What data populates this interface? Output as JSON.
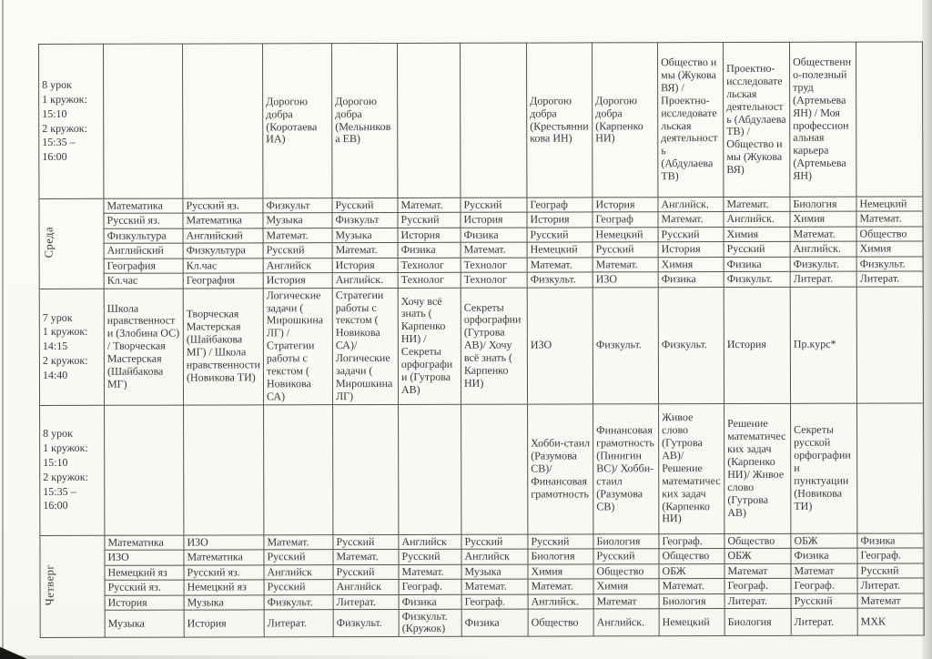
{
  "colors": {
    "paper": "#fbfaf7",
    "ink": "#3a3a3e",
    "line": "#57534d",
    "scan_shadow": "#c8c6c2"
  },
  "timetable": {
    "sections": [
      {
        "kind": "club",
        "time_lines": [
          "8 урок",
          "1 кружок:",
          "15:10",
          "2 кружок:",
          "15:35 –",
          "16:00"
        ],
        "cells": [
          "",
          "",
          "Дорогою добра (Коротаева ИА)",
          "Дорогою добра (Мельникова ЕВ)",
          "",
          "",
          "Дорогою добра (Крестьянникова ИН)",
          "Дорогою добра (Карпенко НИ)",
          "Общество и мы (Жукова ВЯ) / Проектно-исследовательская деятельность (Абдулаева ТВ)",
          "Проектно-исследовательская деятельность (Абдулаева ТВ) / Общество и мы (Жукова ВЯ)",
          "Общественно-полезный труд (Артемьева ЯН) / Моя профессиональная карьера (Артемьева ЯН)",
          ""
        ]
      },
      {
        "kind": "day",
        "label": "Среда",
        "rows": [
          [
            "Математика",
            "Русский яз.",
            "Физкульт",
            "Русский",
            "Математ.",
            "Русский",
            "Географ",
            "История",
            "Английск.",
            "Математ.",
            "Биология",
            "Немецкий"
          ],
          [
            "Русский яз.",
            "Математика",
            "Музыка",
            "Физкульт",
            "Русский",
            "История",
            "История",
            "Географ",
            "Математ.",
            "Английск.",
            "Химия",
            "Математ."
          ],
          [
            "Физкультура",
            "Английский",
            "Математ.",
            "Музыка",
            "История",
            "Физика",
            "Русский",
            "Немецкий",
            "Русский",
            "Химия",
            "Математ.",
            "Общество"
          ],
          [
            "Английский",
            "Физкультура",
            "Русский",
            "Математ.",
            "Физика",
            "Математ.",
            "Немецкий",
            "Русский",
            "История",
            "Русский",
            "Английск.",
            "Химия"
          ],
          [
            "География",
            "Кл.час",
            "Английск",
            "История",
            "Технолог",
            "Технолог",
            "Математ.",
            "Математ.",
            "Химия",
            "Физика",
            "Физкульт.",
            "Физкульт."
          ],
          [
            "Кл.час",
            "География",
            "История",
            "Английск.",
            "Технолог",
            "Технолог",
            "Физкульт.",
            "ИЗО",
            "Физика",
            "Физкульт.",
            "Литерат.",
            "Литерат."
          ]
        ]
      },
      {
        "kind": "club",
        "time_lines": [
          "7 урок",
          "1 кружок:",
          "14:15",
          "2 кружок:",
          "14:40"
        ],
        "cells": [
          "Школа нравственности (Злобина ОС) / Творческая Мастерская (Шайбакова МГ)",
          "Творческая Мастерская (Шайбакова МГ) / Школа нравственности (Новикова ТИ)",
          "Логические задачи ( Мирошкина ЛГ) / Стратегии работы с текстом ( Новикова СА)",
          "Стратегии работы с текстом ( Новикова СА)/ Логические задачи ( Мирошкина ЛГ)",
          "Хочу всё знать ( Карпенко НИ) / Секреты орфографии (Гутрова АВ)",
          "Секреты орфографии (Гутрова АВ)/ Хочу всё знать ( Карпенко НИ)",
          "ИЗО",
          "Физкульт.",
          "Физкульт.",
          "История",
          "Пр.курс*",
          ""
        ]
      },
      {
        "kind": "club",
        "time_lines": [
          "8 урок",
          "1 кружок:",
          "15:10",
          "2 кружок:",
          "15:35 –",
          "16:00"
        ],
        "cells": [
          "",
          "",
          "",
          "",
          "",
          "",
          "Хобби-стаил (Разумова СВ)/ Финансовая грамотность",
          "Финансовая грамотность (Пинигин ВС)/ Хобби-стаил (Разумова СВ)",
          "Живое слово (Гутрова АВ)/Решение математических задач (Карпенко НИ)",
          "Решение математических задач (Карпенко НИ)/ Живое слово (Гутрова АВ)",
          "Секреты русской орфографии и пунктуации (Новикова ТИ)",
          ""
        ]
      },
      {
        "kind": "day",
        "label": "Четверг",
        "rows": [
          [
            "Математика",
            "ИЗО",
            "Математ.",
            "Русский",
            "Английск",
            "Русский",
            "Русский",
            "Биология",
            "Географ.",
            "Общество",
            "ОБЖ",
            "Физика"
          ],
          [
            "ИЗО",
            "Математика",
            "Русский",
            "Математ.",
            "Русский",
            "Английск",
            "Биология",
            "Русский",
            "Общество",
            "ОБЖ",
            "Физика",
            "Географ."
          ],
          [
            "Немецкий яз",
            "Русский яз.",
            "Английск",
            "Русский",
            "Математ.",
            "Музыка",
            "Химия",
            "Общество",
            "ОБЖ",
            "Математ",
            "Математ",
            "Русский"
          ],
          [
            "Русский яз.",
            "Немецкий яз",
            "Русский",
            "Английск",
            "Географ.",
            "Математ.",
            "Математ.",
            "Химия",
            "Математ.",
            "Географ.",
            "Географ.",
            "Литерат."
          ],
          [
            "История",
            "Музыка",
            "Физкульт.",
            "Литерат.",
            "Физика",
            "Географ.",
            "Английск.",
            "Математ",
            "Биология",
            "Литерат.",
            "Русский",
            "Математ"
          ],
          [
            "Музыка",
            "История",
            "Литерат.",
            "Физкульт.",
            "Физкульт. (Кружок)",
            "Физика",
            "Общество",
            "Английск.",
            "Немецкий",
            "Биология",
            "Литерат.",
            "МХК"
          ]
        ]
      }
    ]
  }
}
